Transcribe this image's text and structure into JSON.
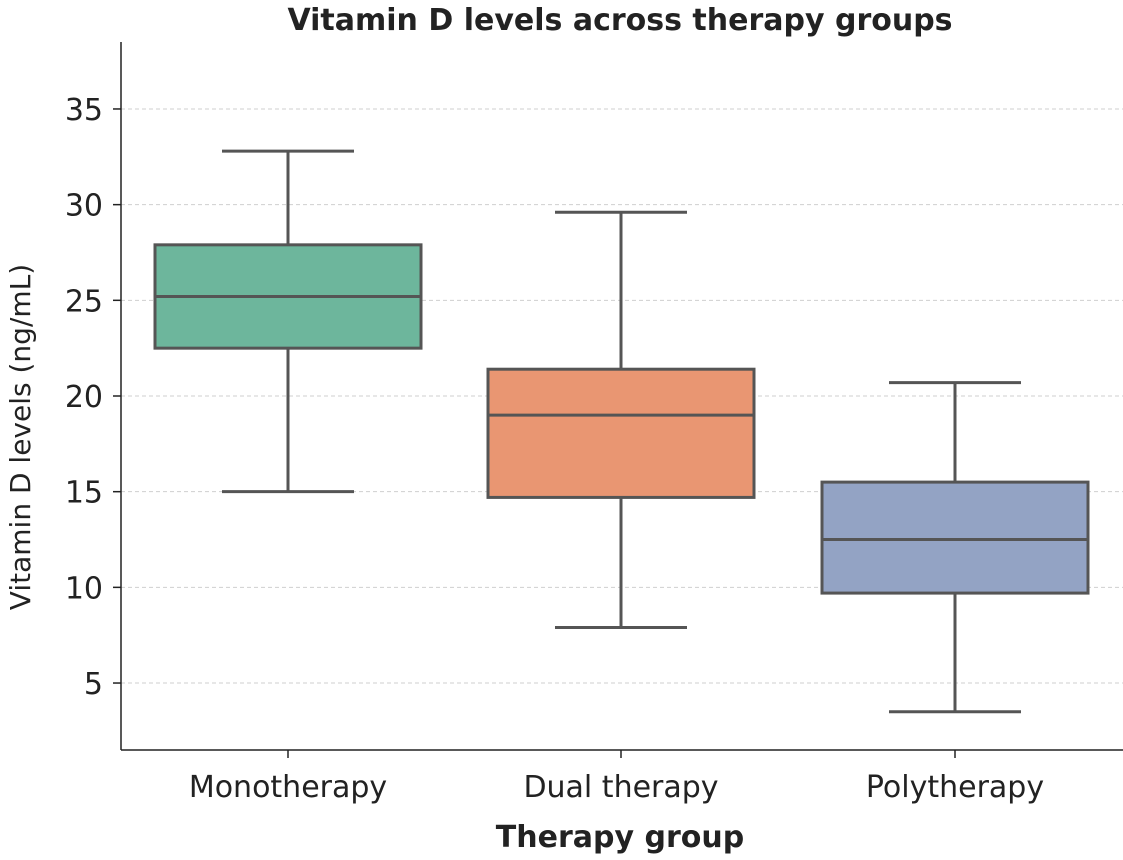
{
  "chart_data": {
    "type": "boxplot",
    "title": "Vitamin D levels across therapy groups",
    "xlabel": "Therapy group",
    "ylabel": "Vitamin D levels (ng/mL)",
    "ylim": [
      1.5,
      38.5
    ],
    "yticks": [
      5,
      10,
      15,
      20,
      25,
      30,
      35
    ],
    "grid": true,
    "categories": [
      "Monotherapy",
      "Dual therapy",
      "Polytherapy"
    ],
    "boxes": [
      {
        "category": "Monotherapy",
        "whisker_low": 15.0,
        "q1": 22.5,
        "median": 25.2,
        "q3": 27.9,
        "whisker_high": 32.8,
        "color": "#6db69c"
      },
      {
        "category": "Dual therapy",
        "whisker_low": 7.9,
        "q1": 14.7,
        "median": 19.0,
        "q3": 21.4,
        "whisker_high": 29.6,
        "color": "#e99672"
      },
      {
        "category": "Polytherapy",
        "whisker_low": 3.5,
        "q1": 9.7,
        "median": 12.5,
        "q3": 15.5,
        "whisker_high": 20.7,
        "color": "#93a3c4"
      }
    ]
  }
}
